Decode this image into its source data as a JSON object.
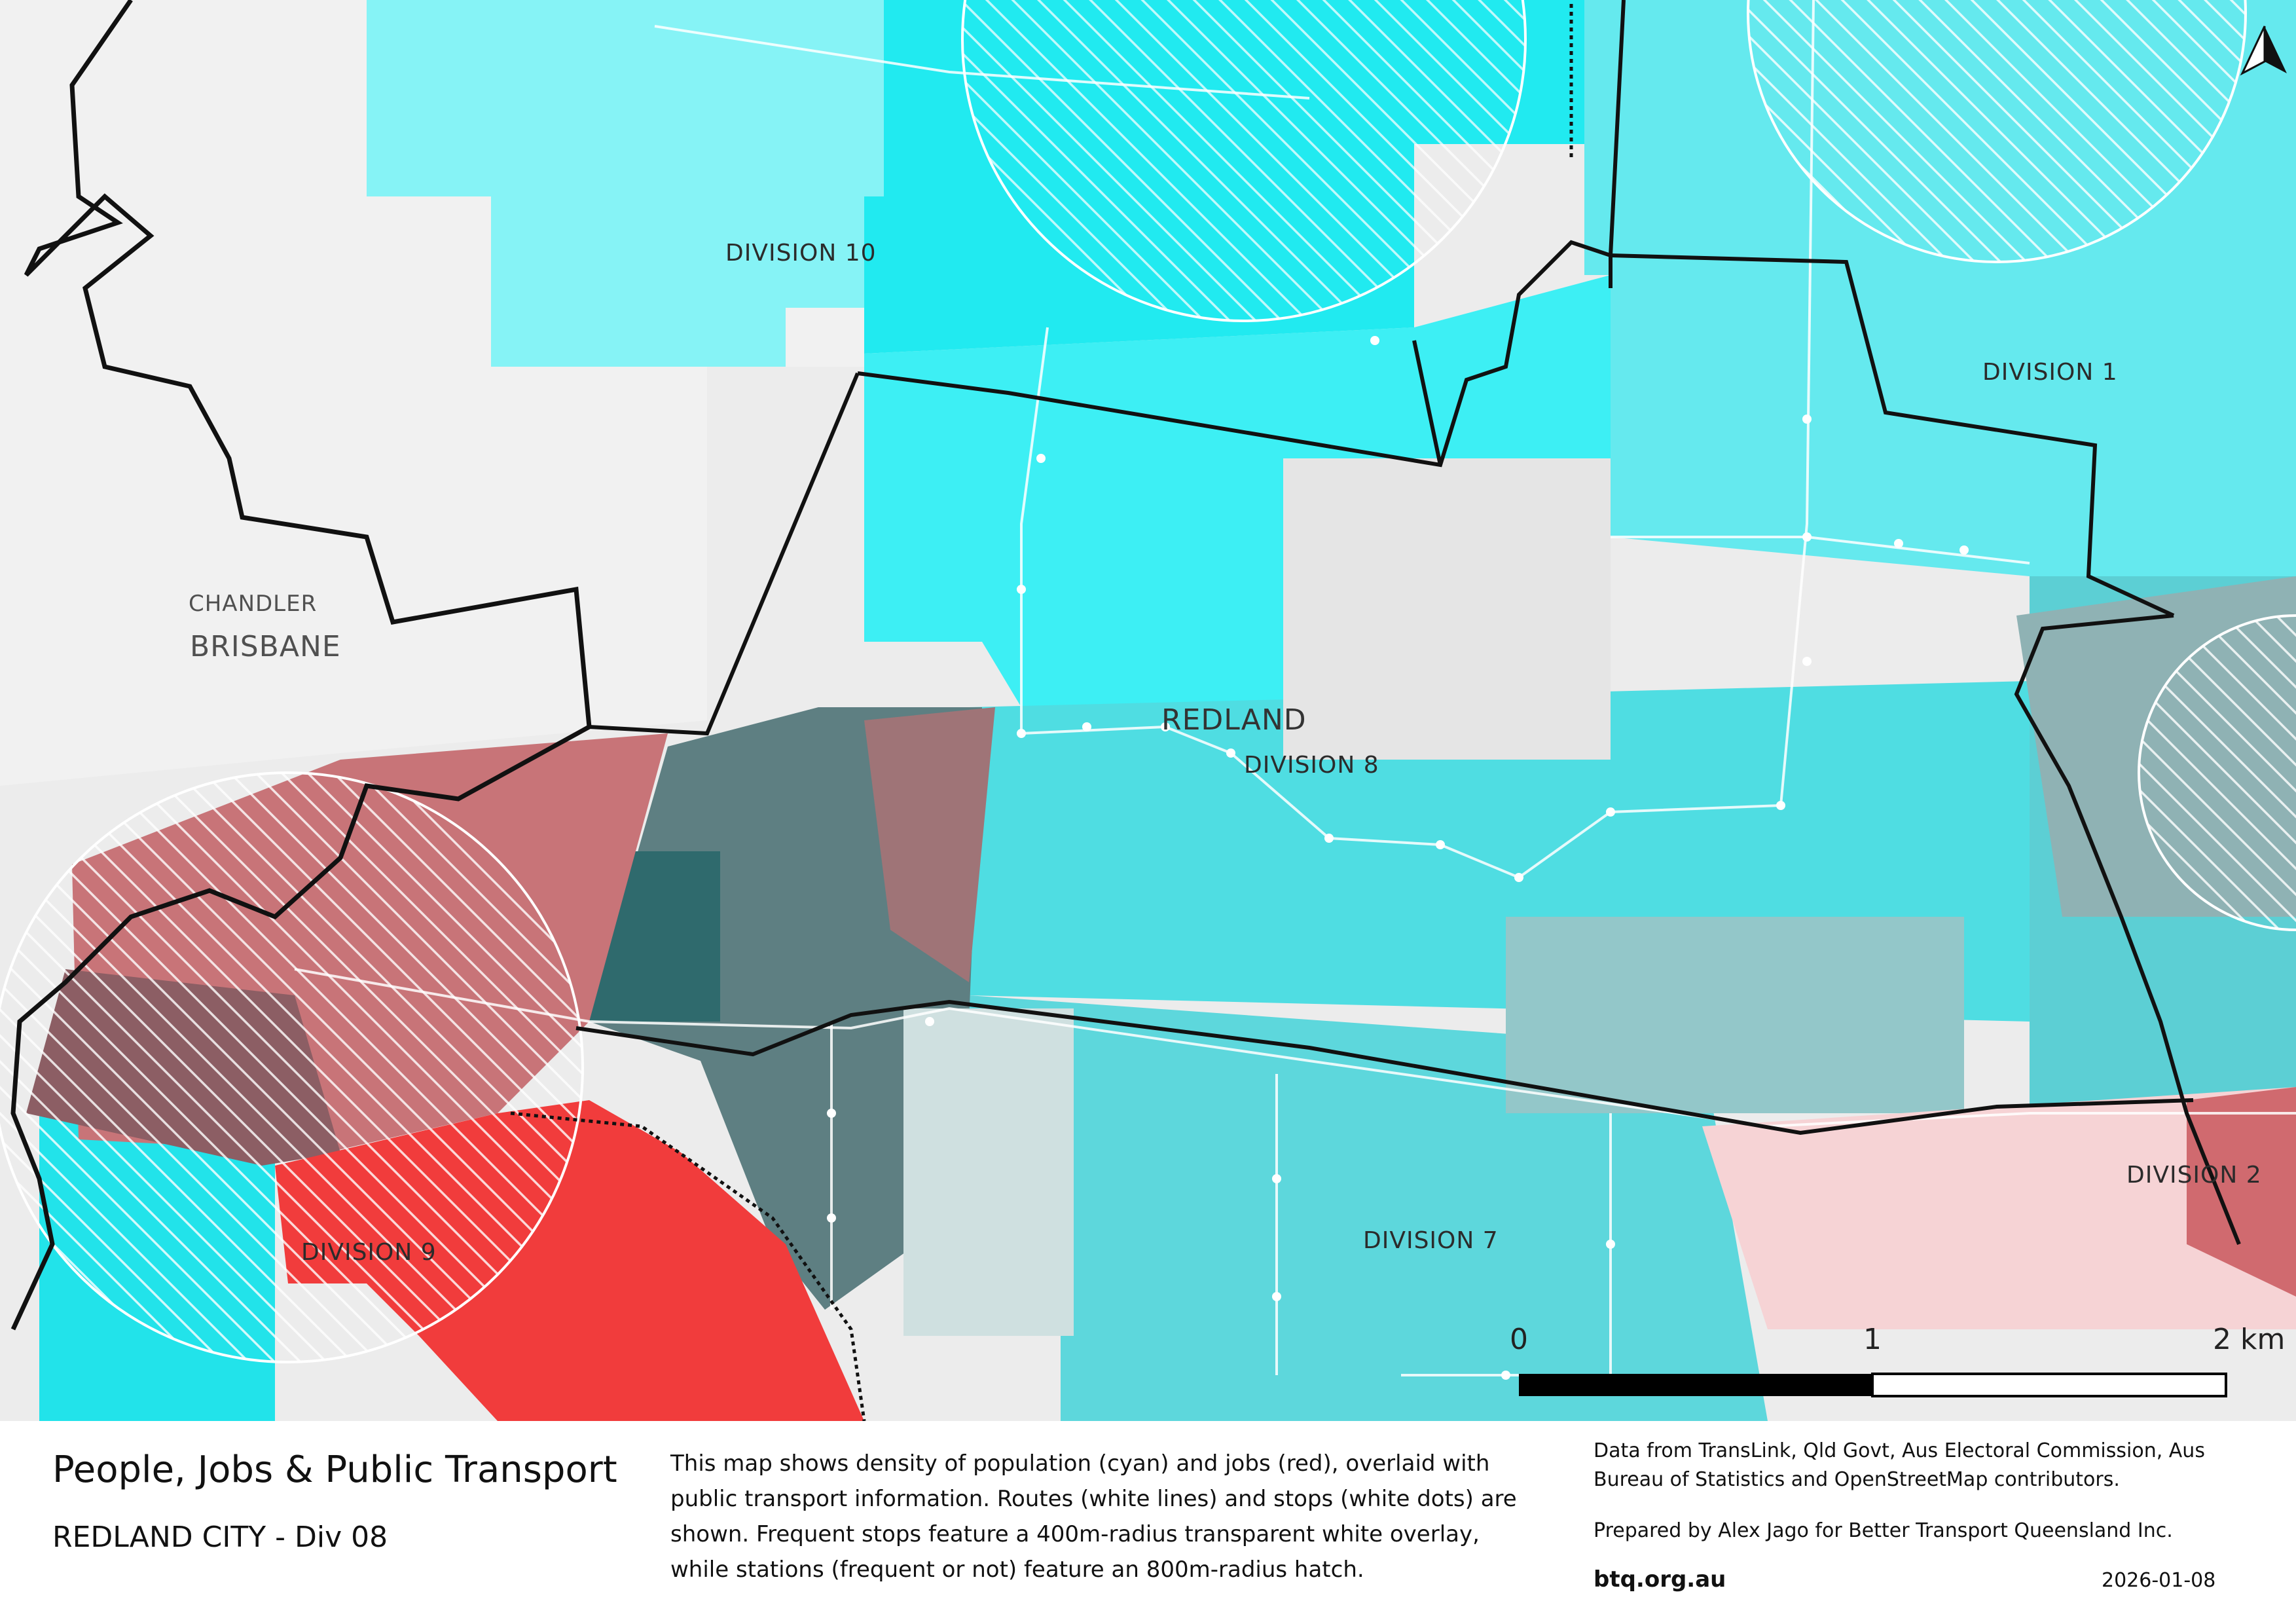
{
  "map": {
    "division_labels": [
      "DIVISION 10",
      "DIVISION 1",
      "DIVISION 8",
      "DIVISION 9",
      "DIVISION 7",
      "DIVISION 2"
    ],
    "place_labels": {
      "suburb": "CHANDLER",
      "city": "BRISBANE",
      "council": "REDLAND"
    },
    "legend_colors": {
      "population": "#00e5ec",
      "jobs": "#f23a3a",
      "route": "#ffffff",
      "boundary": "#111111"
    },
    "north_arrow": "north-arrow-icon",
    "scale_bar": {
      "labels": [
        "0",
        "1",
        "2 km"
      ]
    }
  },
  "footer": {
    "title": "People, Jobs & Public Transport",
    "subtitle": "REDLAND CITY - Div 08",
    "description": "This map shows density of population (cyan) and jobs (red), overlaid with public transport information. Routes (white lines) and stops (white dots) are shown. Frequent stops feature a 400m-radius transparent white overlay, while stations (frequent or not) feature an 800m-radius hatch.",
    "sources": "Data from TransLink,  Qld Govt,  Aus Electoral Commission, Aus Bureau of Statistics and OpenStreetMap contributors.",
    "prepared_by": "Prepared by Alex Jago for Better Transport Queensland Inc.",
    "website": "btq.org.au",
    "date": "2026-01-08"
  }
}
